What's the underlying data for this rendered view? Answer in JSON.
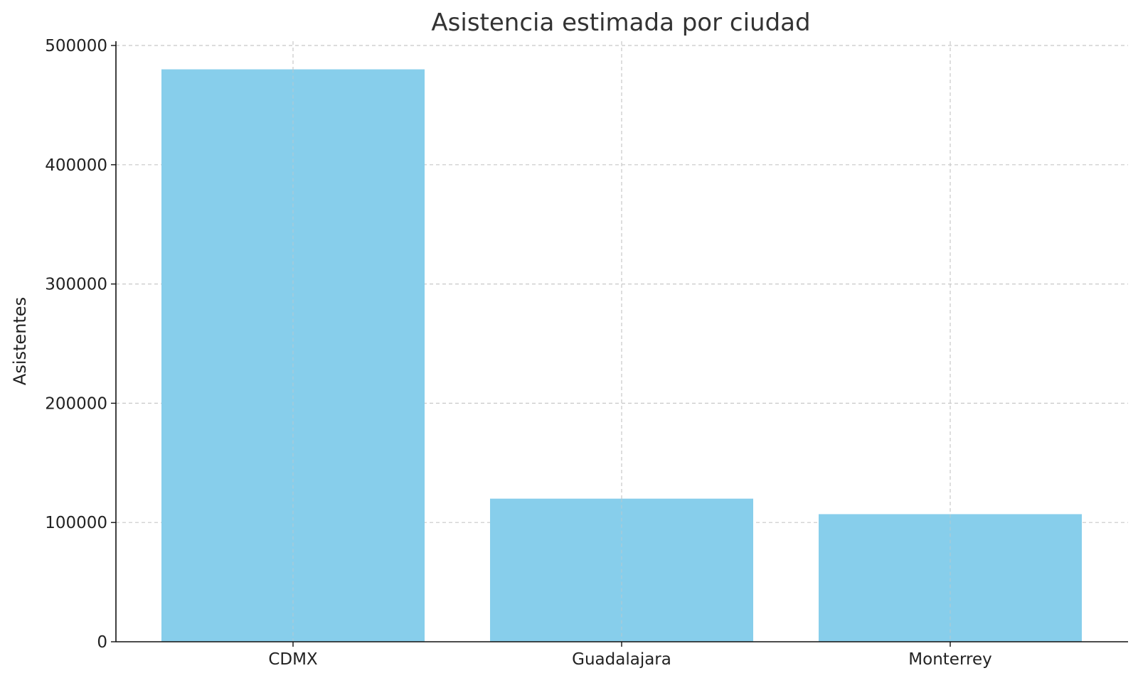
{
  "chart_data": {
    "type": "bar",
    "title": "Asistencia estimada por ciudad",
    "xlabel": "",
    "ylabel": "Asistentes",
    "categories": [
      "CDMX",
      "Guadalajara",
      "Monterrey"
    ],
    "values": [
      480000,
      120000,
      107000
    ],
    "ylim": [
      0,
      500000
    ],
    "yticks": [
      0,
      100000,
      200000,
      300000,
      400000,
      500000
    ],
    "bar_color": "#87CEEB",
    "grid": true,
    "legend": "none"
  }
}
